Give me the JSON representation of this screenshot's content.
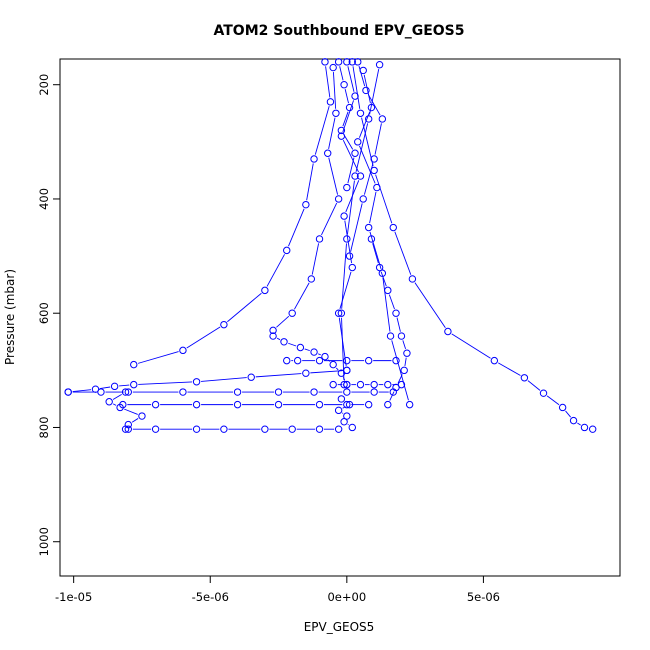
{
  "chart_data": {
    "type": "line",
    "title": "ATOM2 Southbound EPV_GEOS5",
    "xlabel": "EPV_GEOS5",
    "ylabel": "Pressure (mbar)",
    "xlim": [
      -1.05e-05,
      1e-05
    ],
    "ylim": [
      1060,
      155
    ],
    "y_reversed": true,
    "x_ticks": [
      {
        "value": -1e-05,
        "label": "-1e-05"
      },
      {
        "value": -5e-06,
        "label": "-5e-06"
      },
      {
        "value": 0,
        "label": "0e+00"
      },
      {
        "value": 5e-06,
        "label": "5e-06"
      }
    ],
    "y_ticks": [
      {
        "value": 200,
        "label": "200"
      },
      {
        "value": 400,
        "label": "400"
      },
      {
        "value": 600,
        "label": "600"
      },
      {
        "value": 800,
        "label": "800"
      },
      {
        "value": 1000,
        "label": "1000"
      }
    ],
    "grid": false,
    "marker": "open-circle",
    "color": "#0000ff",
    "series": [
      {
        "x": [
          0.0,
          3e-07,
          -2e-07,
          5e-07,
          -1e-07,
          2e-07,
          -3e-07,
          0.0
        ],
        "y": [
          160,
          220,
          290,
          360,
          430,
          520,
          600,
          700
        ]
      },
      {
        "x": [
          -5e-07,
          -4e-07,
          -7e-07,
          -3e-07,
          -1e-06,
          -1.3e-06,
          -2e-06,
          -2.7e-06
        ],
        "y": [
          170,
          250,
          320,
          400,
          470,
          540,
          600,
          630
        ]
      },
      {
        "x": [
          6e-07,
          9e-07,
          4e-07,
          1.1e-06,
          8e-07,
          1.3e-06,
          1.6e-06,
          2.3e-06
        ],
        "y": [
          175,
          240,
          300,
          380,
          450,
          530,
          640,
          760
        ]
      },
      {
        "x": [
          -8e-07,
          -6e-07,
          -1.2e-06,
          -1.5e-06,
          -2.2e-06,
          -3e-06,
          -4.5e-06,
          -6e-06,
          -7.8e-06
        ],
        "y": [
          160,
          230,
          330,
          410,
          490,
          560,
          620,
          665,
          690
        ]
      },
      {
        "x": [
          2e-07,
          5e-07,
          1e-06,
          1.7e-06,
          2.4e-06,
          3.7e-06,
          5.4e-06,
          6.5e-06,
          7.2e-06,
          7.9e-06,
          8.3e-06,
          8.7e-06,
          9e-06
        ],
        "y": [
          160,
          250,
          350,
          450,
          540,
          632,
          683,
          713,
          740,
          765,
          788,
          800,
          803
        ]
      },
      {
        "x": [
          1.2e-06,
          8e-07,
          3e-07,
          0.0,
          -2e-07,
          -1e-07
        ],
        "y": [
          165,
          260,
          360,
          470,
          600,
          725
        ]
      },
      {
        "x": [
          0.0,
          -1.5e-06,
          -3.5e-06,
          -5.5e-06,
          -7.8e-06,
          -8.5e-06,
          -9.2e-06,
          -1.02e-05
        ],
        "y": [
          700,
          705,
          712,
          720,
          725,
          728,
          733,
          738
        ]
      },
      {
        "x": [
          -1.02e-05,
          -9e-06,
          -8e-06,
          -6e-06,
          -4e-06,
          -2.5e-06,
          -1.2e-06,
          0.0,
          1e-06,
          1.7e-06
        ],
        "y": [
          738,
          738,
          738,
          738,
          738,
          738,
          738,
          738,
          738,
          738
        ]
      },
      {
        "x": [
          -8.2e-06,
          -7e-06,
          -5.5e-06,
          -4e-06,
          -2.5e-06,
          -1e-06,
          0.0,
          8e-07
        ],
        "y": [
          760,
          760,
          760,
          760,
          760,
          760,
          760,
          760
        ]
      },
      {
        "x": [
          -8e-06,
          -7e-06,
          -5.5e-06,
          -4.5e-06,
          -3e-06,
          -2e-06,
          -1e-06,
          -3e-07
        ],
        "y": [
          803,
          803,
          803,
          803,
          803,
          803,
          803,
          803
        ]
      },
      {
        "x": [
          -8.1e-06,
          -8e-06,
          -7.5e-06,
          -8.3e-06,
          -8.7e-06,
          -8.1e-06
        ],
        "y": [
          803,
          795,
          780,
          765,
          755,
          738
        ]
      },
      {
        "x": [
          -2.2e-06,
          -1.8e-06,
          -1e-06,
          0.0,
          8e-07,
          1.8e-06
        ],
        "y": [
          683,
          683,
          683,
          683,
          683,
          683
        ]
      },
      {
        "x": [
          -5e-07,
          0.0,
          5e-07,
          1e-06,
          1.5e-06,
          2e-06
        ],
        "y": [
          725,
          725,
          725,
          725,
          725,
          725
        ]
      },
      {
        "x": [
          1.5e-06,
          1.8e-06,
          2.1e-06,
          2.2e-06,
          2e-06,
          1.8e-06,
          1.5e-06,
          1.2e-06,
          9e-07
        ],
        "y": [
          760,
          730,
          700,
          670,
          640,
          600,
          560,
          520,
          470
        ]
      },
      {
        "x": [
          -2.7e-06,
          -2.3e-06,
          -1.7e-06,
          -1.2e-06,
          -8e-07,
          -5e-07,
          -2e-07,
          0.0
        ],
        "y": [
          640,
          650,
          660,
          668,
          676,
          690,
          705,
          725
        ]
      },
      {
        "x": [
          -2e-07,
          1e-07,
          -3e-07,
          0.0,
          -1e-07,
          2e-07
        ],
        "y": [
          750,
          760,
          770,
          780,
          790,
          800
        ]
      },
      {
        "x": [
          4e-07,
          7e-07,
          1.3e-06,
          1e-06,
          6e-07,
          1e-07
        ],
        "y": [
          160,
          210,
          260,
          330,
          400,
          500
        ]
      },
      {
        "x": [
          -3e-07,
          -1e-07,
          1e-07,
          -2e-07,
          3e-07,
          0.0
        ],
        "y": [
          160,
          200,
          240,
          280,
          320,
          380
        ]
      }
    ]
  }
}
